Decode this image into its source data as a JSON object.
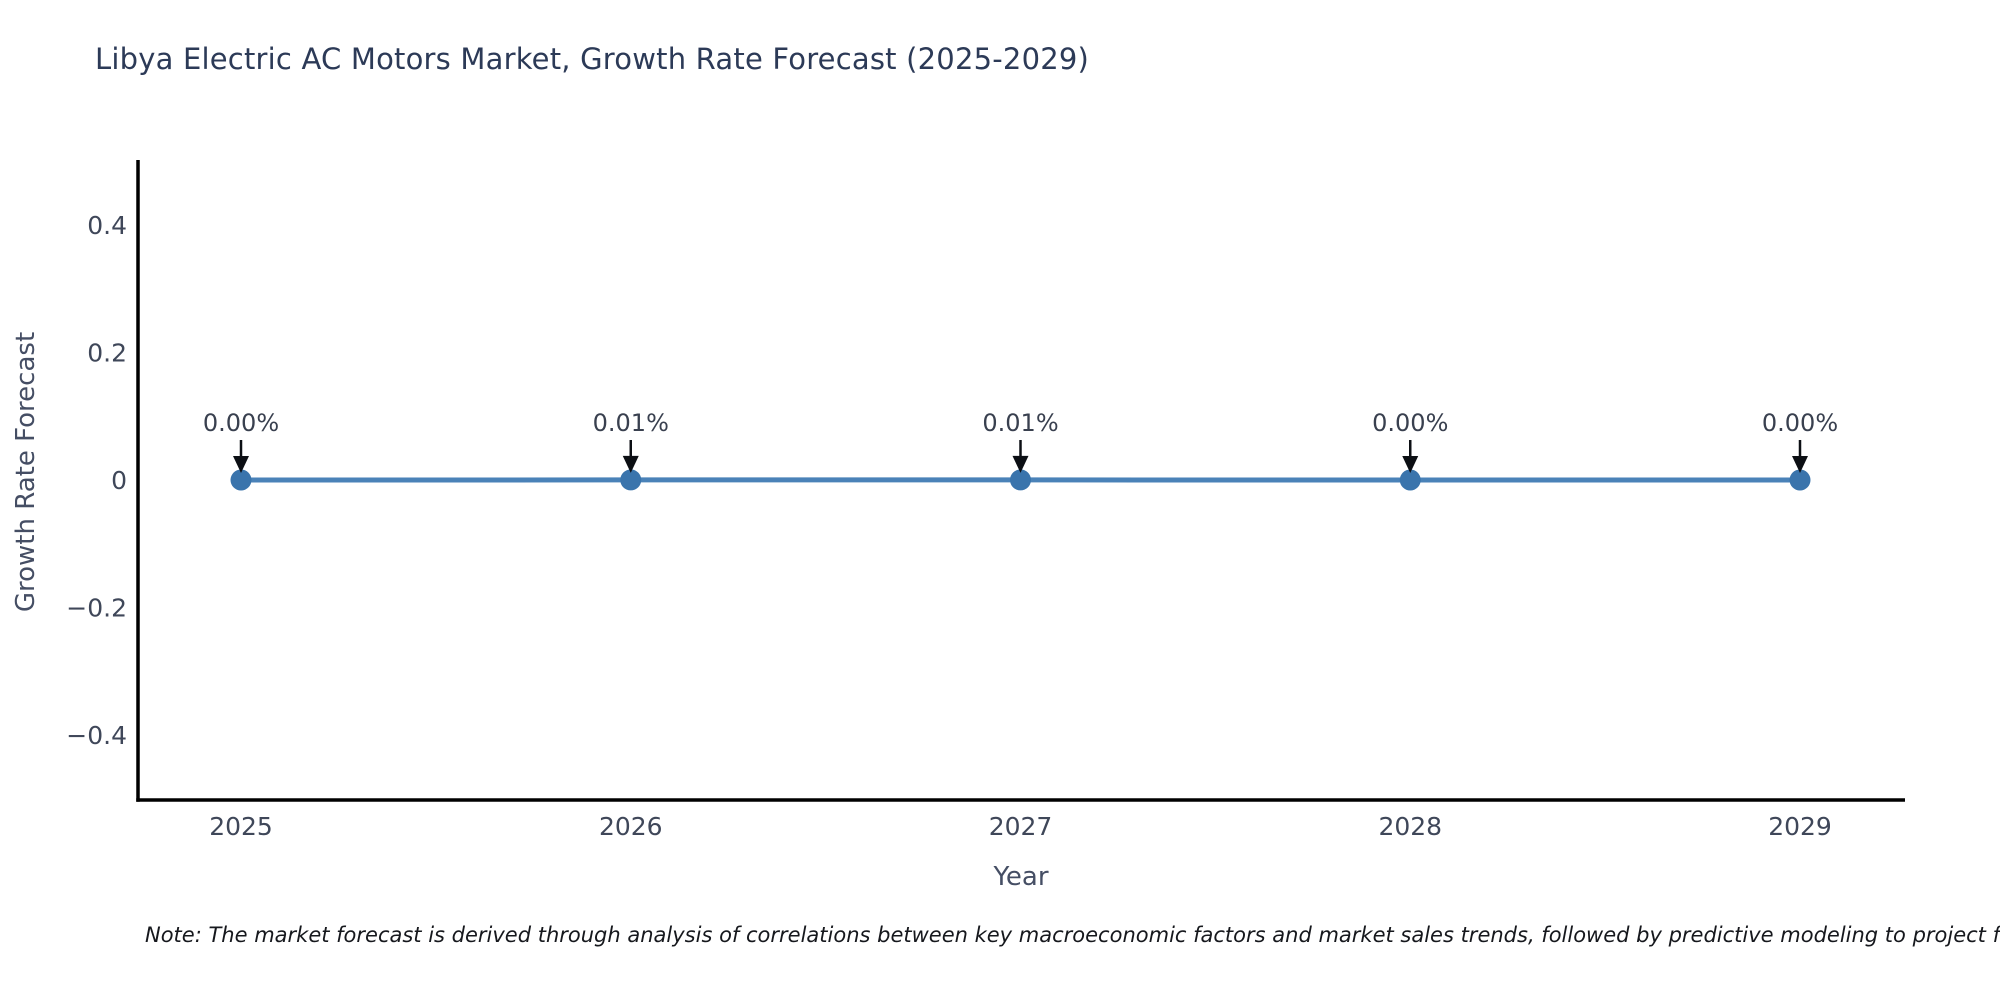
{
  "page": {
    "note": "Note: The market forecast is derived through analysis of correlations between key macroeconomic factors and market sales trends, followed by predictive modeling to project future sales"
  },
  "chart_data": {
    "type": "line",
    "title": "Libya Electric AC Motors Market, Growth Rate Forecast (2025-2029)",
    "xlabel": "Year",
    "ylabel": "Growth Rate Forecast",
    "x": [
      2025,
      2026,
      2027,
      2028,
      2029
    ],
    "values": [
      0.0,
      0.0001,
      0.0001,
      0.0,
      0.0
    ],
    "point_labels": [
      "0.00%",
      "0.01%",
      "0.01%",
      "0.00%",
      "0.00%"
    ],
    "xtick_labels": [
      "2025",
      "2026",
      "2027",
      "2028",
      "2029"
    ],
    "ytick_labels": [
      "0.4",
      "0.2",
      "0",
      "−0.2",
      "−0.4"
    ],
    "ytick_values": [
      0.4,
      0.2,
      0,
      -0.2,
      -0.4
    ],
    "xlim": [
      2024.74,
      2029.27
    ],
    "ylim": [
      -0.5,
      0.5
    ],
    "grid": false,
    "legend": null,
    "colors": {
      "line": "#4a82b8",
      "marker": "#3a74ac",
      "arrow": "#0c0f14",
      "axis": "#000000"
    }
  }
}
